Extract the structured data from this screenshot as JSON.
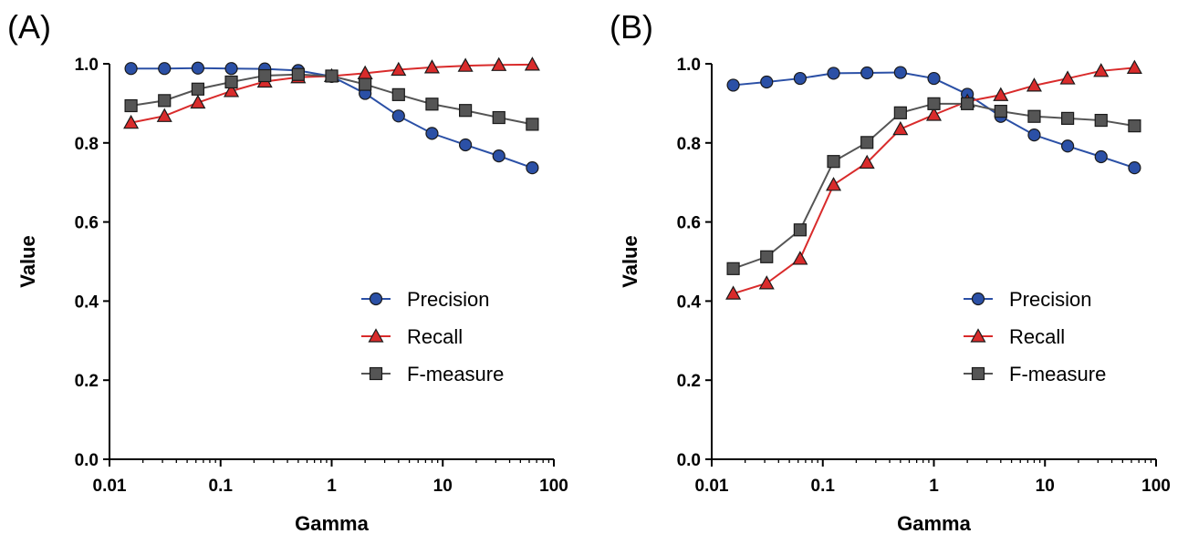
{
  "chart_data": [
    {
      "type": "line",
      "panel_label": "(A)",
      "title": "",
      "xlabel": "Gamma",
      "ylabel": "Value",
      "xscale": "log",
      "xlim": [
        0.01,
        100
      ],
      "ylim": [
        0.0,
        1.0
      ],
      "x_ticks": [
        "0.01",
        "0.1",
        "1",
        "10",
        "100"
      ],
      "y_ticks": [
        "0.0",
        "0.2",
        "0.4",
        "0.6",
        "0.8",
        "1.0"
      ],
      "grid": false,
      "legend_position": "bottom-right",
      "x": [
        0.015625,
        0.03125,
        0.0625,
        0.125,
        0.25,
        0.5,
        1,
        2,
        4,
        8,
        16,
        32,
        64
      ],
      "series": [
        {
          "name": "Precision",
          "color": "#2b50a6",
          "marker": "circle",
          "values": [
            0.988,
            0.988,
            0.989,
            0.988,
            0.987,
            0.983,
            0.968,
            0.925,
            0.868,
            0.824,
            0.795,
            0.767,
            0.737
          ]
        },
        {
          "name": "Recall",
          "color": "#d92b2b",
          "marker": "triangle",
          "values": [
            0.851,
            0.868,
            0.902,
            0.931,
            0.955,
            0.966,
            0.969,
            0.976,
            0.985,
            0.991,
            0.995,
            0.997,
            0.998
          ]
        },
        {
          "name": "F-measure",
          "color": "#555555",
          "marker": "square",
          "values": [
            0.894,
            0.907,
            0.936,
            0.954,
            0.97,
            0.973,
            0.969,
            0.948,
            0.922,
            0.898,
            0.882,
            0.864,
            0.847
          ]
        }
      ]
    },
    {
      "type": "line",
      "panel_label": "(B)",
      "title": "",
      "xlabel": "Gamma",
      "ylabel": "Value",
      "xscale": "log",
      "xlim": [
        0.01,
        100
      ],
      "ylim": [
        0.0,
        1.0
      ],
      "x_ticks": [
        "0.01",
        "0.1",
        "1",
        "10",
        "100"
      ],
      "y_ticks": [
        "0.0",
        "0.2",
        "0.4",
        "0.6",
        "0.8",
        "1.0"
      ],
      "grid": false,
      "legend_position": "bottom-right",
      "x": [
        0.015625,
        0.03125,
        0.0625,
        0.125,
        0.25,
        0.5,
        1,
        2,
        4,
        8,
        16,
        32,
        64
      ],
      "series": [
        {
          "name": "Precision",
          "color": "#2b50a6",
          "marker": "circle",
          "values": [
            0.946,
            0.954,
            0.963,
            0.976,
            0.977,
            0.978,
            0.963,
            0.923,
            0.867,
            0.82,
            0.792,
            0.765,
            0.737
          ]
        },
        {
          "name": "Recall",
          "color": "#d92b2b",
          "marker": "triangle",
          "values": [
            0.419,
            0.445,
            0.507,
            0.694,
            0.75,
            0.835,
            0.871,
            0.905,
            0.921,
            0.945,
            0.963,
            0.982,
            0.99
          ]
        },
        {
          "name": "F-measure",
          "color": "#555555",
          "marker": "square",
          "values": [
            0.482,
            0.512,
            0.58,
            0.753,
            0.801,
            0.876,
            0.899,
            0.899,
            0.88,
            0.867,
            0.862,
            0.857,
            0.843
          ]
        }
      ]
    }
  ]
}
